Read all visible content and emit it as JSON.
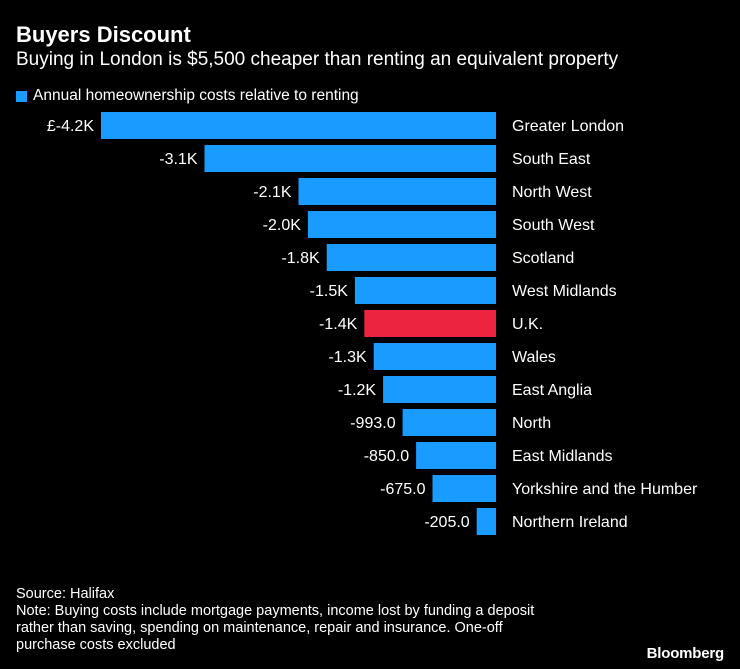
{
  "title": "Buyers Discount",
  "subtitle": "Buying in London is $5,500 cheaper than renting an equivalent property",
  "legend": {
    "label": "Annual homeownership costs relative to renting"
  },
  "colors": {
    "primary": "#1a9bff",
    "highlight": "#ec2440",
    "background": "#000000",
    "text": "#ffffff"
  },
  "chart_data": {
    "type": "bar",
    "orientation": "horizontal",
    "categories": [
      "Greater London",
      "South East",
      "North West",
      "South West",
      "Scotland",
      "West Midlands",
      "U.K.",
      "Wales",
      "East Anglia",
      "North",
      "East Midlands",
      "Yorkshire and the Humber",
      "Northern Ireland"
    ],
    "values": [
      -4200,
      -3100,
      -2100,
      -2000,
      -1800,
      -1500,
      -1400,
      -1300,
      -1200,
      -993,
      -850,
      -675,
      -205
    ],
    "value_labels": [
      "£-4.2K",
      "-3.1K",
      "-2.1K",
      "-2.0K",
      "-1.8K",
      "-1.5K",
      "-1.4K",
      "-1.3K",
      "-1.2K",
      "-993.0",
      "-850.0",
      "-675.0",
      "-205.0"
    ],
    "highlight_category": "U.K.",
    "series_name": "Annual homeownership costs relative to renting",
    "xlim": [
      -4200,
      0
    ]
  },
  "footer": {
    "source": "Source: Halifax",
    "note_lines": [
      "Note: Buying costs include mortgage payments, income lost by funding a deposit",
      "rather than saving, spending on maintenance, repair and insurance. One-off",
      "purchase costs excluded"
    ]
  },
  "brand": "Bloomberg"
}
